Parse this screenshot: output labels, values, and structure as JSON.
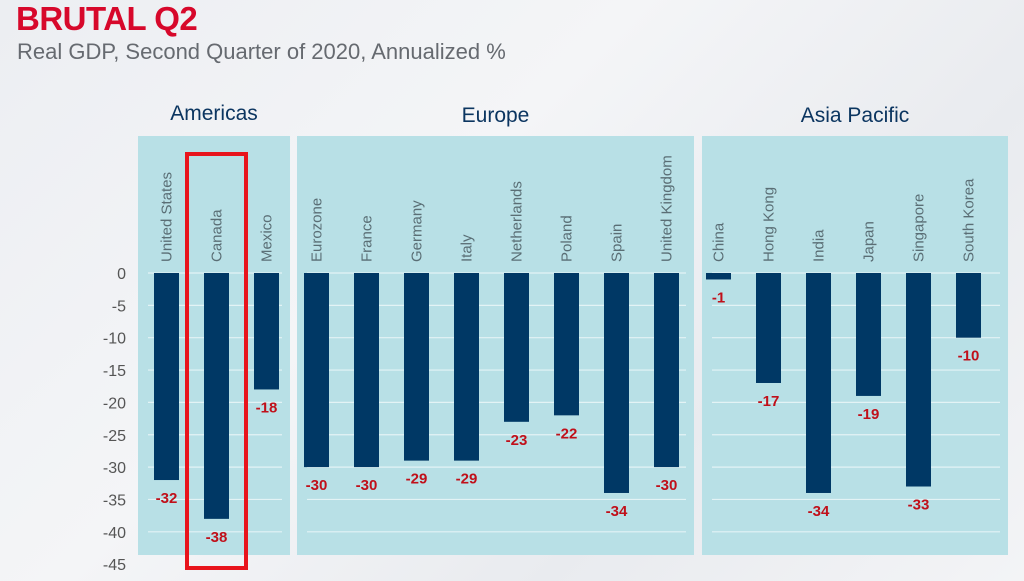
{
  "header": {
    "title": "BRUTAL Q2",
    "subtitle": "Real GDP, Second Quarter of 2020, Annualized %"
  },
  "colors": {
    "title": "#d7082b",
    "bar": "#003865",
    "panel": "#b8e0e6",
    "value_label": "#c0101a",
    "highlight": "#e8141c"
  },
  "chart_data": {
    "type": "bar",
    "title": "BRUTAL Q2",
    "subtitle": "Real GDP, Second Quarter of 2020, Annualized %",
    "xlabel": "",
    "ylabel": "",
    "ylim": [
      -45,
      0
    ],
    "yticks": [
      "0",
      "-5",
      "-10",
      "-15",
      "-20",
      "-25",
      "-30",
      "-35",
      "-40",
      "-45"
    ],
    "grid": true,
    "highlight": "Canada",
    "groups": [
      {
        "name": "Americas",
        "categories": [
          "United States",
          "Canada",
          "Mexico"
        ],
        "values": [
          -32,
          -38,
          -18
        ]
      },
      {
        "name": "Europe",
        "categories": [
          "Eurozone",
          "France",
          "Germany",
          "Italy",
          "Netherlands",
          "Poland",
          "Spain",
          "United Kingdom"
        ],
        "values": [
          -30,
          -30,
          -29,
          -29,
          -23,
          -22,
          -34,
          -30
        ]
      },
      {
        "name": "Asia Pacific",
        "categories": [
          "China",
          "Hong Kong",
          "India",
          "Japan",
          "Singapore",
          "South Korea"
        ],
        "values": [
          -1,
          -17,
          -34,
          -19,
          -33,
          -10
        ]
      }
    ]
  }
}
